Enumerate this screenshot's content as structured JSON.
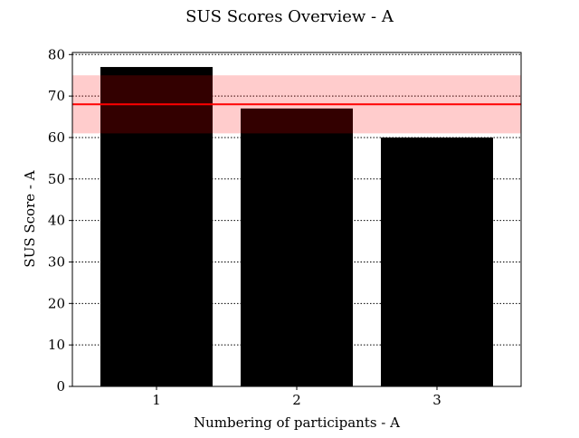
{
  "chart_data": {
    "type": "bar",
    "title": "SUS Scores Overview - A",
    "xlabel": "Numbering of participants - A",
    "ylabel": "SUS Score - A",
    "categories": [
      "1",
      "2",
      "3"
    ],
    "values": [
      77,
      67,
      60
    ],
    "ylim": [
      0,
      80.5
    ],
    "yticks": [
      0,
      10,
      20,
      30,
      40,
      50,
      60,
      70,
      80
    ],
    "grid": "horizontal dotted",
    "reference_line": {
      "value": 68,
      "color": "#ff0000"
    },
    "reference_band": {
      "range": [
        61,
        75
      ],
      "color": "#ff0000",
      "opacity": 0.2
    },
    "colors": {
      "bars": "#000000",
      "reference": "#ff0000"
    }
  }
}
